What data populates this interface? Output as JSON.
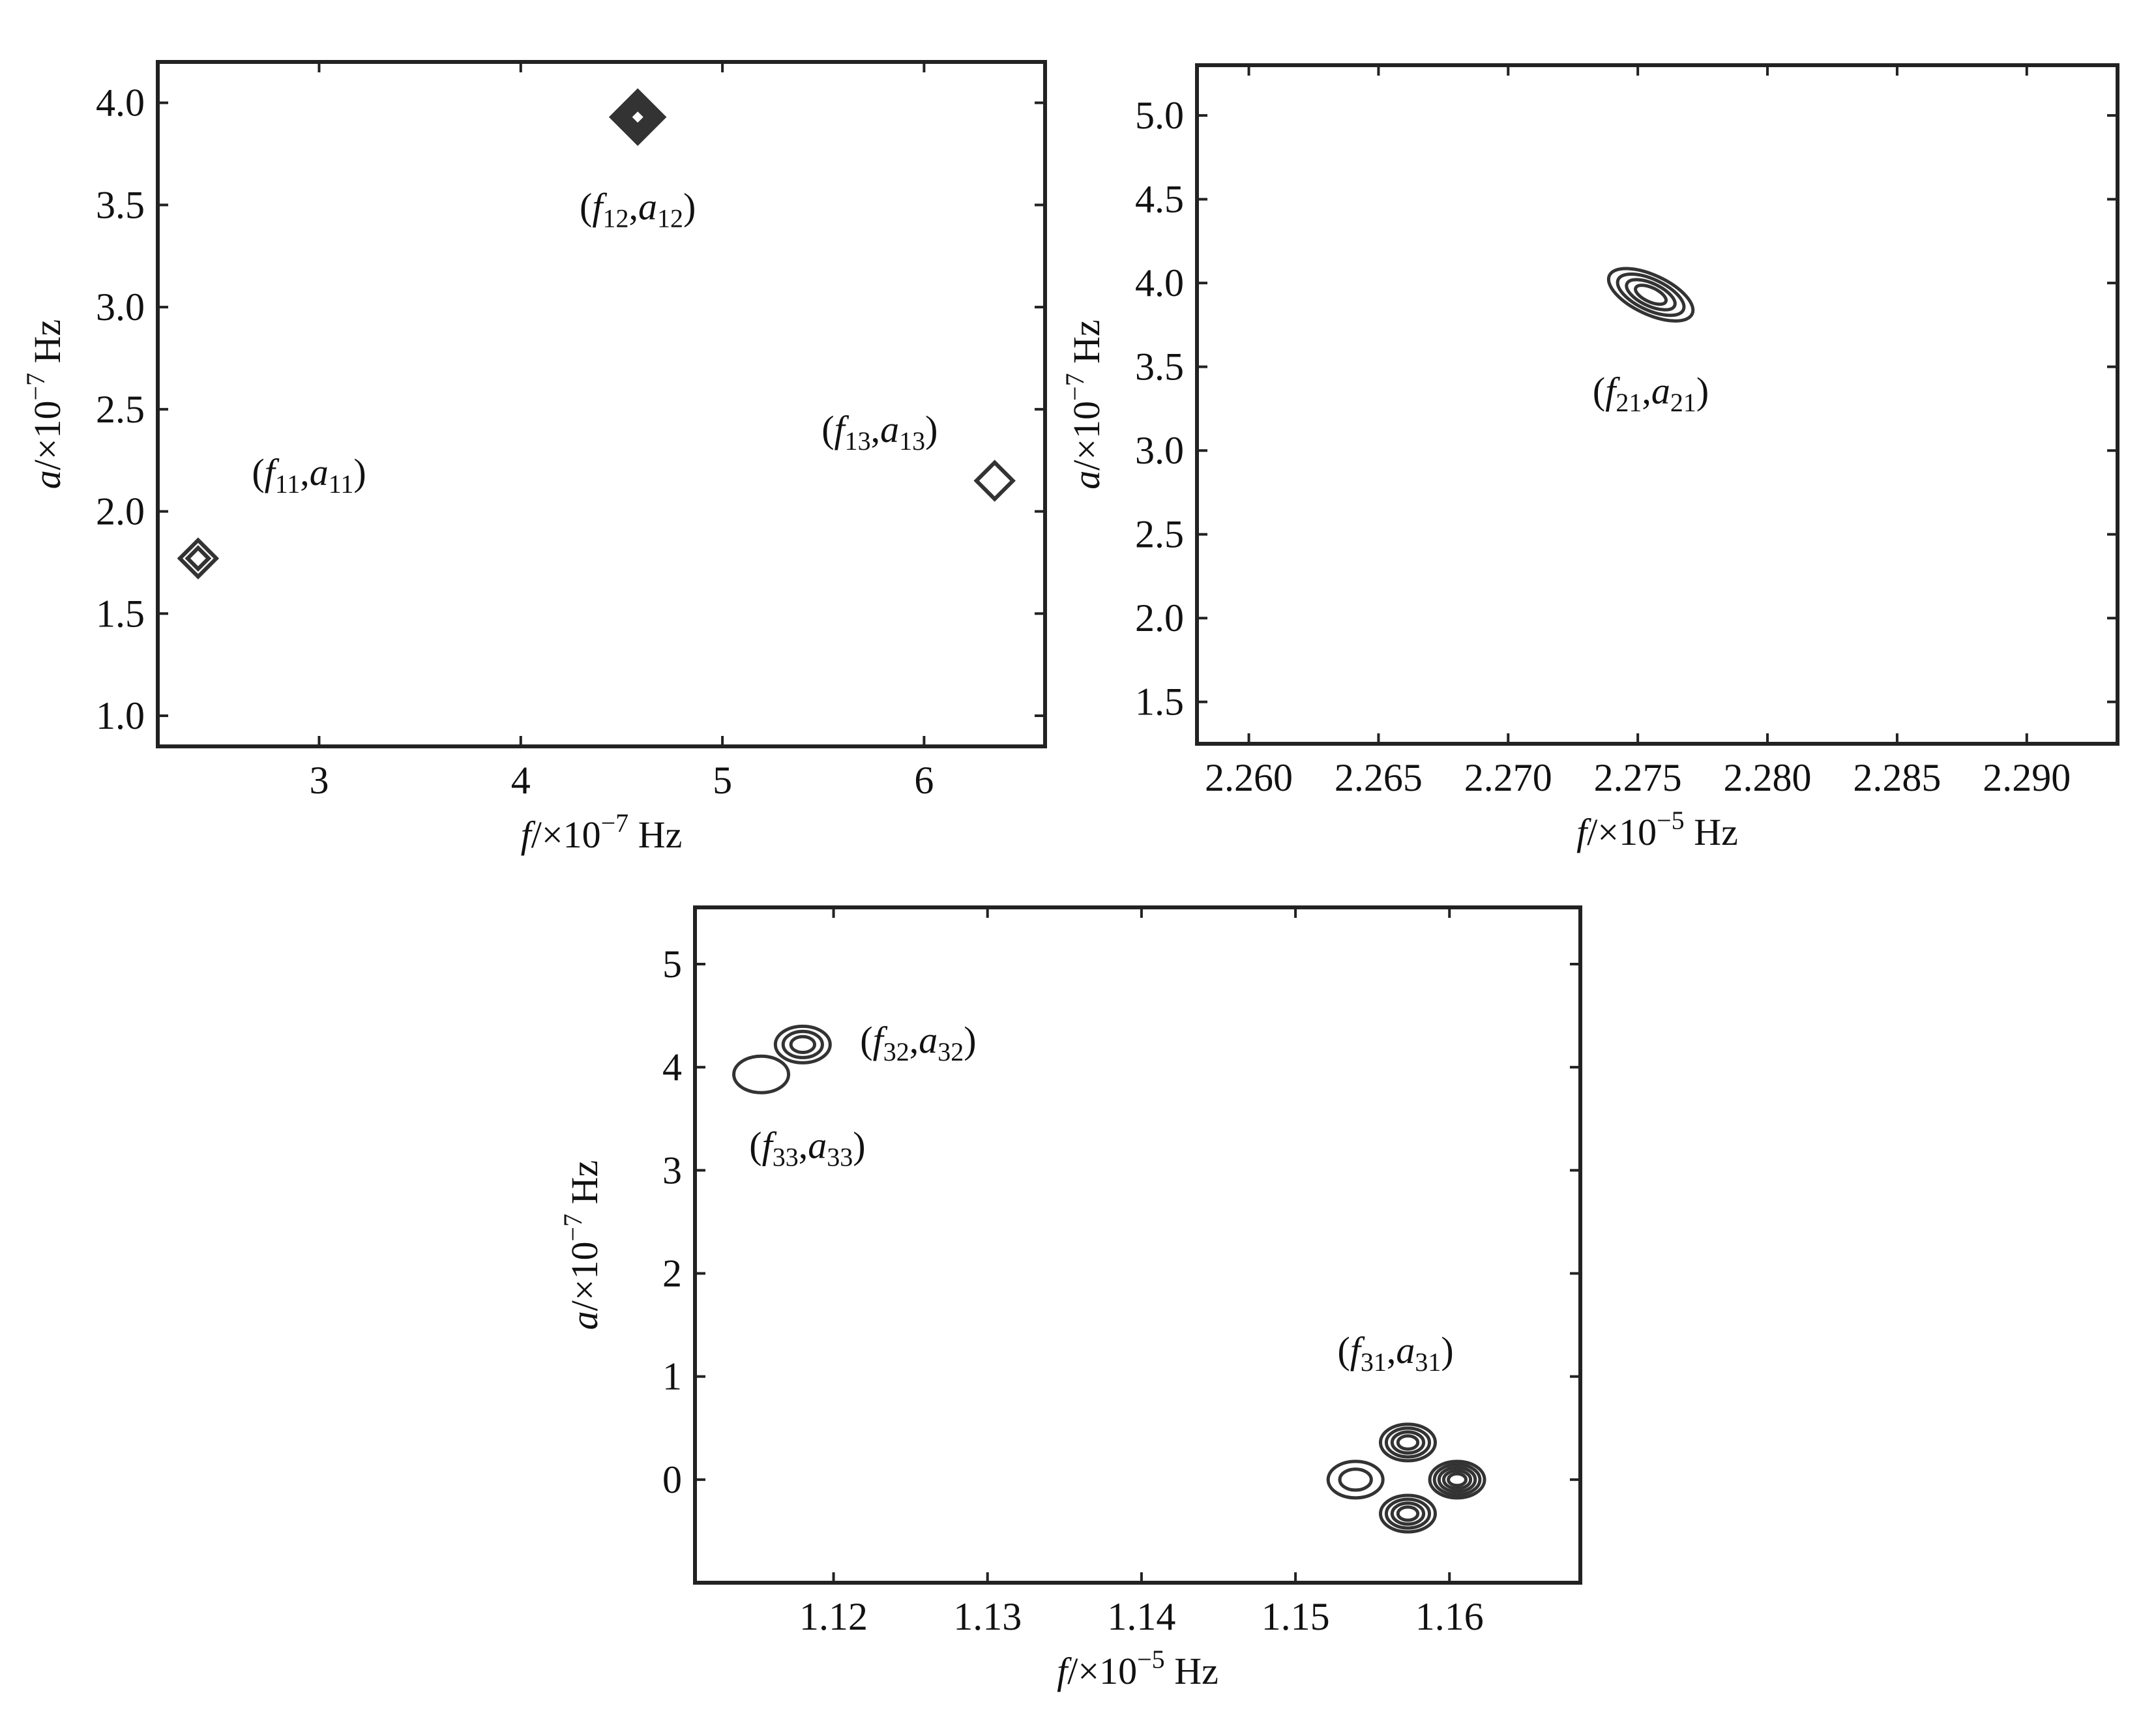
{
  "chart_data": [
    {
      "id": "top-left",
      "type": "contour",
      "xlabel": {
        "base": "f",
        "unit_prefix": "/×10",
        "exp": "−7",
        "unit": " Hz"
      },
      "ylabel": {
        "base": "a",
        "unit_prefix": "/×10",
        "exp": "−7",
        "unit": " Hz"
      },
      "xlim": [
        2.2,
        6.6
      ],
      "ylim": [
        0.85,
        4.2
      ],
      "xticks": [
        {
          "v": 3,
          "label": "3"
        },
        {
          "v": 4,
          "label": "4"
        },
        {
          "v": 5,
          "label": "5"
        },
        {
          "v": 6,
          "label": "6"
        }
      ],
      "yticks": [
        {
          "v": 1.0,
          "label": "1.0"
        },
        {
          "v": 1.5,
          "label": "1.5"
        },
        {
          "v": 2.0,
          "label": "2.0"
        },
        {
          "v": 2.5,
          "label": "2.5"
        },
        {
          "v": 3.0,
          "label": "3.0"
        },
        {
          "v": 3.5,
          "label": "3.5"
        },
        {
          "v": 4.0,
          "label": "4.0"
        }
      ],
      "peaks": [
        {
          "x": 2.4,
          "y": 1.77,
          "shape": "diamond",
          "levels": 2,
          "annotation": {
            "f": "f",
            "fs": "11",
            "a": "a",
            "as": "11",
            "ax": 2.95,
            "ay": 2.13
          }
        },
        {
          "x": 4.58,
          "y": 3.93,
          "shape": "diamond",
          "levels": 5,
          "annotation": {
            "f": "f",
            "fs": "12",
            "a": "a",
            "as": "12",
            "ax": 4.58,
            "ay": 3.43
          }
        },
        {
          "x": 6.35,
          "y": 2.15,
          "shape": "diamond",
          "levels": 1,
          "annotation": {
            "f": "f",
            "fs": "13",
            "a": "a",
            "as": "13",
            "ax": 5.78,
            "ay": 2.34
          }
        }
      ]
    },
    {
      "id": "top-right",
      "type": "contour",
      "xlabel": {
        "base": "f",
        "unit_prefix": "/×10",
        "exp": "−5",
        "unit": " Hz"
      },
      "ylabel": {
        "base": "a",
        "unit_prefix": "/×10",
        "exp": "−7",
        "unit": " Hz"
      },
      "xlim": [
        2.258,
        2.2935
      ],
      "ylim": [
        1.25,
        5.3
      ],
      "xticks": [
        {
          "v": 2.26,
          "label": "2.260"
        },
        {
          "v": 2.265,
          "label": "2.265"
        },
        {
          "v": 2.27,
          "label": "2.270"
        },
        {
          "v": 2.275,
          "label": "2.275"
        },
        {
          "v": 2.28,
          "label": "2.280"
        },
        {
          "v": 2.285,
          "label": "2.285"
        },
        {
          "v": 2.29,
          "label": "2.290"
        }
      ],
      "yticks": [
        {
          "v": 1.5,
          "label": "1.5"
        },
        {
          "v": 2.0,
          "label": "2.0"
        },
        {
          "v": 2.5,
          "label": "2.5"
        },
        {
          "v": 3.0,
          "label": "3.0"
        },
        {
          "v": 3.5,
          "label": "3.5"
        },
        {
          "v": 4.0,
          "label": "4.0"
        },
        {
          "v": 4.5,
          "label": "4.5"
        },
        {
          "v": 5.0,
          "label": "5.0"
        }
      ],
      "peaks": [
        {
          "x": 2.2755,
          "y": 3.93,
          "shape": "lens",
          "levels": 4,
          "annotation": {
            "f": "f",
            "fs": "21",
            "a": "a",
            "as": "21",
            "ax": 2.2755,
            "ay": 3.28
          }
        }
      ]
    },
    {
      "id": "bottom",
      "type": "contour",
      "xlabel": {
        "base": "f",
        "unit_prefix": "/×10",
        "exp": "−5",
        "unit": " Hz"
      },
      "ylabel": {
        "base": "a",
        "unit_prefix": "/×10",
        "exp": "−7",
        "unit": " Hz"
      },
      "xlim": [
        1.111,
        1.1685
      ],
      "ylim": [
        -1.0,
        5.55
      ],
      "xticks": [
        {
          "v": 1.12,
          "label": "1.12"
        },
        {
          "v": 1.13,
          "label": "1.13"
        },
        {
          "v": 1.14,
          "label": "1.14"
        },
        {
          "v": 1.15,
          "label": "1.15"
        },
        {
          "v": 1.16,
          "label": "1.16"
        }
      ],
      "yticks": [
        {
          "v": 0,
          "label": "0"
        },
        {
          "v": 1,
          "label": "1"
        },
        {
          "v": 2,
          "label": "2"
        },
        {
          "v": 3,
          "label": "3"
        },
        {
          "v": 4,
          "label": "4"
        },
        {
          "v": 5,
          "label": "5"
        }
      ],
      "peaks": [
        {
          "x": 1.1605,
          "y": 0.0,
          "shape": "blob",
          "levels": 5,
          "annotation": {
            "f": "f",
            "fs": "31",
            "a": "a",
            "as": "31",
            "ax": 1.1565,
            "ay": 1.13
          }
        },
        {
          "x": 1.1573,
          "y": 0.36,
          "shape": "blob",
          "levels": 4
        },
        {
          "x": 1.1573,
          "y": -0.33,
          "shape": "blob",
          "levels": 4
        },
        {
          "x": 1.1539,
          "y": 0.0,
          "shape": "blob",
          "levels": 2
        },
        {
          "x": 1.118,
          "y": 4.22,
          "shape": "blob",
          "levels": 3,
          "annotation": {
            "f": "f",
            "fs": "32",
            "a": "a",
            "as": "32",
            "ax": 1.1255,
            "ay": 4.14
          }
        },
        {
          "x": 1.1153,
          "y": 3.93,
          "shape": "blob",
          "levels": 1,
          "annotation": {
            "f": "f",
            "fs": "33",
            "a": "a",
            "as": "33",
            "ax": 1.1183,
            "ay": 3.12
          }
        }
      ]
    }
  ]
}
